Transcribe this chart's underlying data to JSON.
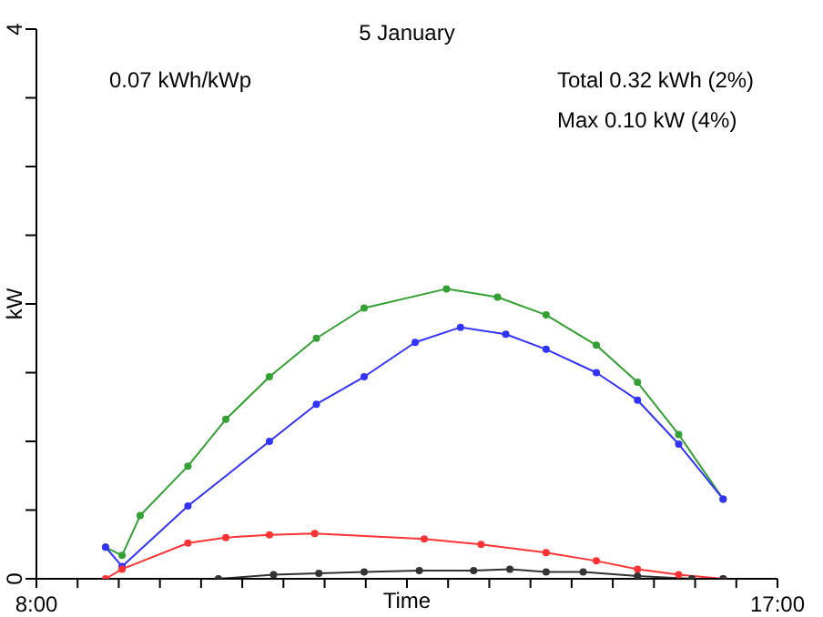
{
  "chart_data": {
    "type": "line",
    "title": "5 January",
    "xlabel": "Time",
    "ylabel": "kW",
    "annotations": [
      "0.07 kWh/kWp",
      "Total 0.32 kWh (2%)",
      "Max 0.10 kW (4%)"
    ],
    "xlim": [
      8,
      17
    ],
    "xticks": [
      {
        "value": 8,
        "label": "8:00"
      },
      {
        "value": 8.5,
        "label": null
      },
      {
        "value": 9,
        "label": null
      },
      {
        "value": 9.5,
        "label": null
      },
      {
        "value": 10,
        "label": null
      },
      {
        "value": 10.5,
        "label": null
      },
      {
        "value": 11,
        "label": null
      },
      {
        "value": 11.5,
        "label": null
      },
      {
        "value": 12,
        "label": null
      },
      {
        "value": 12.5,
        "label": null
      },
      {
        "value": 13,
        "label": null
      },
      {
        "value": 13.5,
        "label": null
      },
      {
        "value": 14,
        "label": null
      },
      {
        "value": 14.5,
        "label": null
      },
      {
        "value": 15,
        "label": null
      },
      {
        "value": 15.5,
        "label": null
      },
      {
        "value": 16,
        "label": null
      },
      {
        "value": 16.5,
        "label": null
      },
      {
        "value": 17,
        "label": "17:00"
      }
    ],
    "ylim": [
      0,
      4
    ],
    "yticks": [
      0,
      {
        "value": 0.5,
        "label": null
      },
      {
        "value": 1,
        "label": null
      },
      {
        "value": 1.5,
        "label": null
      },
      {
        "value": 2,
        "label": null
      },
      {
        "value": 2.5,
        "label": null
      },
      {
        "value": 3,
        "label": null
      },
      {
        "value": 3.5,
        "label": null
      },
      4
    ],
    "grid": false,
    "legend": false,
    "marker": "circle",
    "line_style": "solid",
    "series": [
      {
        "color": "#33a033",
        "x": [
          8.84,
          9.04,
          9.26,
          9.84,
          10.3,
          10.83,
          11.4,
          11.98,
          12.98,
          13.6,
          14.19,
          14.8,
          15.3,
          15.8,
          16.34
        ],
        "values": [
          0.23,
          0.17,
          0.46,
          0.82,
          1.16,
          1.47,
          1.75,
          1.97,
          2.11,
          2.05,
          1.92,
          1.7,
          1.43,
          1.05,
          0.58
        ]
      },
      {
        "color": "#3333ff",
        "x": [
          8.84,
          9.04,
          9.84,
          10.83,
          11.4,
          11.98,
          12.6,
          13.15,
          13.7,
          14.19,
          14.8,
          15.3,
          15.8,
          16.34
        ],
        "values": [
          0.23,
          0.09,
          0.53,
          1.0,
          1.27,
          1.47,
          1.72,
          1.83,
          1.78,
          1.67,
          1.5,
          1.3,
          0.98,
          0.58
        ]
      },
      {
        "color": "#ff3333",
        "x": [
          8.84,
          9.04,
          9.84,
          10.3,
          10.83,
          11.38,
          12.71,
          13.4,
          14.19,
          14.8,
          15.3,
          15.8,
          16.34
        ],
        "values": [
          0,
          0.07,
          0.26,
          0.3,
          0.32,
          0.33,
          0.29,
          0.25,
          0.19,
          0.13,
          0.07,
          0.03,
          0
        ]
      },
      {
        "color": "#333333",
        "x": [
          10.21,
          10.88,
          11.43,
          11.98,
          12.65,
          13.31,
          13.75,
          14.19,
          14.64,
          15.3,
          15.96,
          16.34
        ],
        "values": [
          0,
          0.03,
          0.04,
          0.05,
          0.06,
          0.06,
          0.07,
          0.05,
          0.05,
          0.02,
          0,
          0
        ]
      }
    ]
  }
}
